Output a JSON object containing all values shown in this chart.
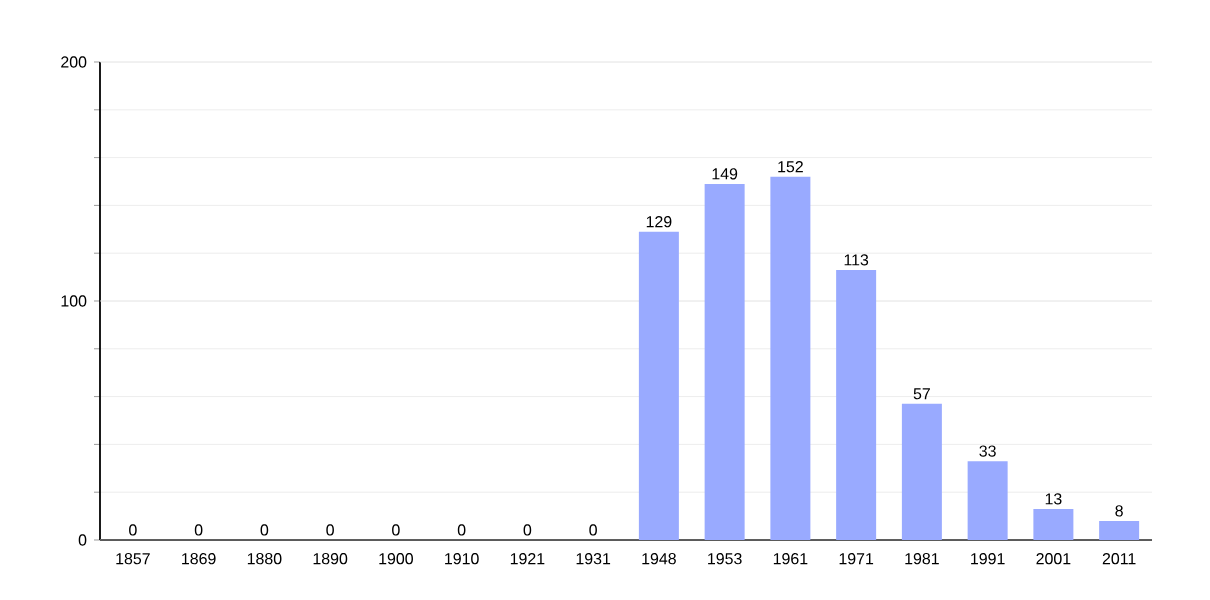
{
  "chart_data": {
    "type": "bar",
    "categories": [
      "1857",
      "1869",
      "1880",
      "1890",
      "1900",
      "1910",
      "1921",
      "1931",
      "1948",
      "1953",
      "1961",
      "1971",
      "1981",
      "1991",
      "2001",
      "2011"
    ],
    "values": [
      0,
      0,
      0,
      0,
      0,
      0,
      0,
      0,
      129,
      149,
      152,
      113,
      57,
      33,
      13,
      8
    ],
    "color": "#99aaff",
    "ylim": [
      0,
      200
    ],
    "yticks": [
      0,
      {
        "value": 20,
        "label": null
      },
      {
        "value": 40,
        "label": null
      },
      {
        "value": 60,
        "label": null
      },
      {
        "value": 80,
        "label": null
      },
      100,
      {
        "value": 120,
        "label": null
      },
      {
        "value": 140,
        "label": null
      },
      {
        "value": 160,
        "label": null
      },
      {
        "value": 180,
        "label": null
      },
      200
    ],
    "grid": "y",
    "data_labels": true
  }
}
